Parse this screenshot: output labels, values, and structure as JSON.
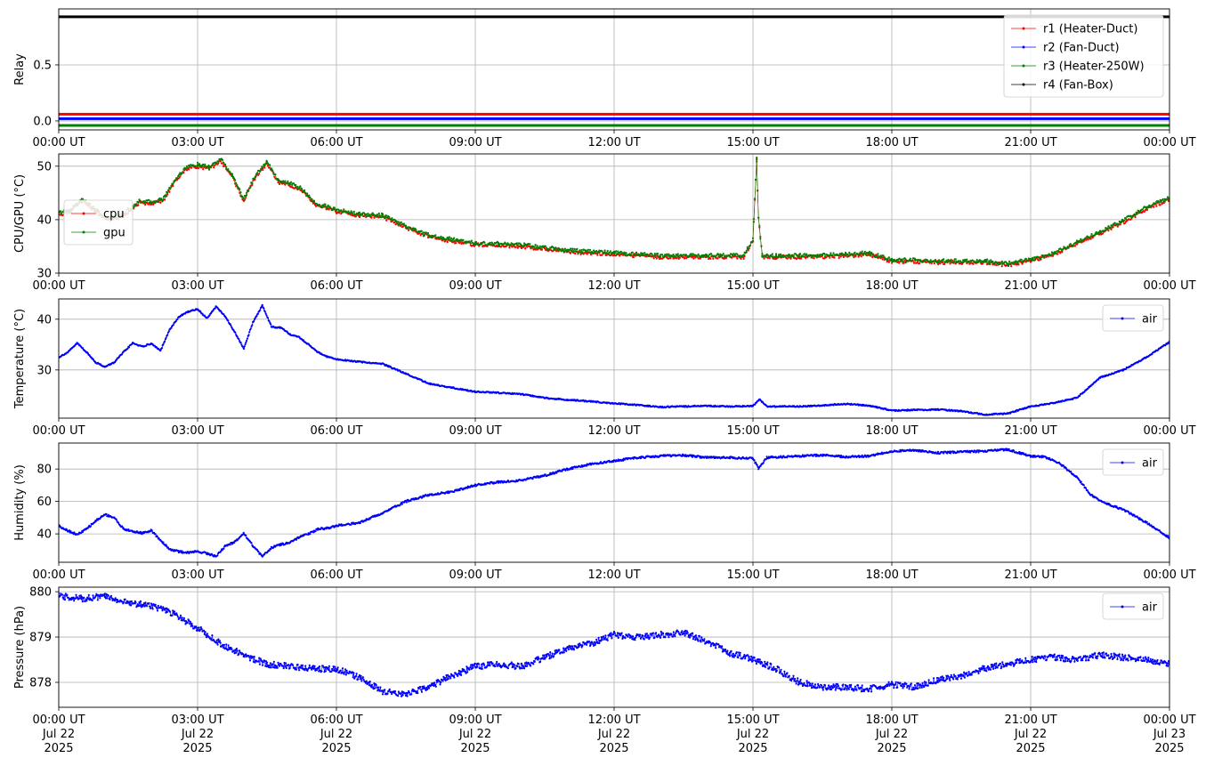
{
  "chart_data": [
    {
      "type": "line",
      "ylabel": "Relay",
      "ylim": [
        -0.08,
        1.0
      ],
      "yticks": [
        0.0,
        0.5
      ],
      "ytick_labels": [
        "0.0",
        "0.5"
      ],
      "xlim": [
        0,
        24
      ],
      "xticks": [
        0,
        3,
        6,
        9,
        12,
        15,
        18,
        21,
        24
      ],
      "xtick_labels": [
        "00:00 UT",
        "03:00 UT",
        "06:00 UT",
        "09:00 UT",
        "12:00 UT",
        "15:00 UT",
        "18:00 UT",
        "21:00 UT",
        "00:00 UT"
      ],
      "grid": true,
      "legend": "top-right",
      "series": [
        {
          "name": "r1 (Heater-Duct)",
          "color": "#ff0000",
          "x": [
            0,
            24
          ],
          "values": [
            0.06,
            0.06
          ]
        },
        {
          "name": "r2 (Fan-Duct)",
          "color": "#0000ff",
          "x": [
            0,
            24
          ],
          "values": [
            0.02,
            0.02
          ]
        },
        {
          "name": "r3 (Heater-250W)",
          "color": "#008000",
          "x": [
            0,
            24
          ],
          "values": [
            -0.04,
            -0.04
          ]
        },
        {
          "name": "r4 (Fan-Box)",
          "color": "#000000",
          "x": [
            0,
            24
          ],
          "values": [
            0.93,
            0.93
          ]
        }
      ]
    },
    {
      "type": "line",
      "ylabel": "CPU/GPU (°C)",
      "ylim": [
        30,
        52.3
      ],
      "yticks": [
        30,
        40,
        50
      ],
      "ytick_labels": [
        "30",
        "40",
        "50"
      ],
      "xlim": [
        0,
        24
      ],
      "xticks": [
        0,
        3,
        6,
        9,
        12,
        15,
        18,
        21,
        24
      ],
      "xtick_labels": [
        "00:00 UT",
        "03:00 UT",
        "06:00 UT",
        "09:00 UT",
        "12:00 UT",
        "15:00 UT",
        "18:00 UT",
        "21:00 UT",
        "00:00 UT"
      ],
      "grid": true,
      "legend": "center-left",
      "series": [
        {
          "name": "cpu",
          "color": "#ff0000",
          "x": [
            0,
            0.25,
            0.5,
            0.75,
            1,
            1.25,
            1.5,
            1.75,
            2,
            2.25,
            2.5,
            2.75,
            3,
            3.25,
            3.5,
            3.75,
            4,
            4.25,
            4.5,
            4.75,
            5,
            5.25,
            5.5,
            6,
            6.5,
            7,
            7.5,
            8,
            8.5,
            9,
            9.5,
            10,
            11,
            12,
            13,
            14,
            14.8,
            15,
            15.08,
            15.12,
            15.2,
            15.5,
            16,
            17,
            17.5,
            18,
            19,
            20,
            20.5,
            21,
            21.5,
            22,
            22.5,
            23,
            23.5,
            24
          ],
          "values": [
            41,
            41.5,
            43.5,
            42,
            40,
            40.2,
            41.5,
            43.2,
            43,
            43.5,
            47,
            49.5,
            50,
            49.5,
            51,
            48,
            43.5,
            48,
            50.5,
            47,
            46.5,
            45.5,
            43,
            41.5,
            40.8,
            40.5,
            38.5,
            36.8,
            36,
            35.3,
            35.2,
            35,
            34,
            33.5,
            33,
            33,
            33,
            36,
            51,
            40,
            33,
            33,
            33,
            33.2,
            33.5,
            32.2,
            32,
            32,
            31.5,
            32.2,
            33.5,
            35.5,
            37.5,
            39.5,
            42,
            43.8
          ]
        },
        {
          "name": "gpu",
          "color": "#008000",
          "x": [
            0,
            0.25,
            0.5,
            0.75,
            1,
            1.25,
            1.5,
            1.75,
            2,
            2.25,
            2.5,
            2.75,
            3,
            3.25,
            3.5,
            3.75,
            4,
            4.25,
            4.5,
            4.75,
            5,
            5.25,
            5.5,
            6,
            6.5,
            7,
            7.5,
            8,
            8.5,
            9,
            9.5,
            10,
            11,
            12,
            13,
            14,
            14.8,
            15,
            15.08,
            15.12,
            15.2,
            15.5,
            16,
            17,
            17.5,
            18,
            19,
            20,
            20.5,
            21,
            21.5,
            22,
            22.5,
            23,
            23.5,
            24
          ],
          "values": [
            41.3,
            41.8,
            43.8,
            42.3,
            40.3,
            40.5,
            41.8,
            43.5,
            43.3,
            43.8,
            47.3,
            49.8,
            50.3,
            49.8,
            51.3,
            48.3,
            43.8,
            48.3,
            50.8,
            47.3,
            46.8,
            45.8,
            43.3,
            41.8,
            41.1,
            40.8,
            38.8,
            37.1,
            36.3,
            35.6,
            35.5,
            35.3,
            34.3,
            33.8,
            33.3,
            33.3,
            33.3,
            36.3,
            51.3,
            40.3,
            33.3,
            33.3,
            33.3,
            33.5,
            33.8,
            32.5,
            32.3,
            32.3,
            31.8,
            32.5,
            33.8,
            35.8,
            37.8,
            39.8,
            42.3,
            44.1
          ]
        }
      ]
    },
    {
      "type": "line",
      "ylabel": "Temperature (°C)",
      "ylim": [
        20.5,
        44
      ],
      "yticks": [
        30,
        40
      ],
      "ytick_labels": [
        "30",
        "40"
      ],
      "xlim": [
        0,
        24
      ],
      "xticks": [
        0,
        3,
        6,
        9,
        12,
        15,
        18,
        21,
        24
      ],
      "xtick_labels": [
        "00:00 UT",
        "03:00 UT",
        "06:00 UT",
        "09:00 UT",
        "12:00 UT",
        "15:00 UT",
        "18:00 UT",
        "21:00 UT",
        "00:00 UT"
      ],
      "grid": true,
      "legend": "top-right",
      "series": [
        {
          "name": "air",
          "color": "#0000ff",
          "x": [
            0,
            0.2,
            0.4,
            0.6,
            0.8,
            1,
            1.2,
            1.4,
            1.6,
            1.8,
            2,
            2.2,
            2.4,
            2.6,
            2.8,
            3,
            3.2,
            3.4,
            3.6,
            3.8,
            4,
            4.2,
            4.4,
            4.6,
            4.8,
            5,
            5.2,
            5.4,
            5.6,
            5.8,
            6,
            6.5,
            7,
            7.5,
            8,
            8.5,
            9,
            9.5,
            10,
            10.5,
            11,
            11.5,
            12,
            12.5,
            13,
            13.5,
            14,
            14.5,
            15,
            15.15,
            15.3,
            16,
            16.5,
            17,
            17.5,
            18,
            18.5,
            19,
            19.5,
            20,
            20.5,
            21,
            21.5,
            22,
            22.5,
            23,
            23.5,
            24
          ],
          "values": [
            32.5,
            33.5,
            35.3,
            33.5,
            31.5,
            30.6,
            31.5,
            33.5,
            35.3,
            34.6,
            35.2,
            33.8,
            38,
            40.5,
            41.5,
            42,
            40.2,
            42.5,
            40.5,
            37.5,
            34.2,
            39.5,
            42.7,
            38.5,
            38.3,
            37,
            36.4,
            35,
            33.5,
            32.6,
            32.1,
            31.6,
            31.2,
            29.3,
            27.3,
            26.5,
            25.7,
            25.5,
            25.2,
            24.5,
            24.1,
            23.8,
            23.4,
            23.1,
            22.7,
            22.8,
            22.9,
            22.8,
            22.9,
            24.2,
            22.8,
            22.8,
            23.0,
            23.3,
            23.0,
            22.0,
            22.1,
            22.2,
            21.9,
            21.2,
            21.4,
            22.8,
            23.5,
            24.5,
            28.5,
            30,
            32.5,
            35.5
          ]
        }
      ]
    },
    {
      "type": "line",
      "ylabel": "Humidity (%)",
      "ylim": [
        22.5,
        96
      ],
      "yticks": [
        40,
        60,
        80
      ],
      "ytick_labels": [
        "40",
        "60",
        "80"
      ],
      "xlim": [
        0,
        24
      ],
      "xticks": [
        0,
        3,
        6,
        9,
        12,
        15,
        18,
        21,
        24
      ],
      "xtick_labels": [
        "00:00 UT",
        "03:00 UT",
        "06:00 UT",
        "09:00 UT",
        "12:00 UT",
        "15:00 UT",
        "18:00 UT",
        "21:00 UT",
        "00:00 UT"
      ],
      "grid": true,
      "legend": "top-right",
      "series": [
        {
          "name": "air",
          "color": "#0000ff",
          "x": [
            0,
            0.2,
            0.4,
            0.6,
            0.8,
            1,
            1.2,
            1.4,
            1.6,
            1.8,
            2,
            2.2,
            2.4,
            2.6,
            2.8,
            3,
            3.2,
            3.4,
            3.6,
            3.8,
            4,
            4.2,
            4.4,
            4.6,
            4.8,
            5,
            5.2,
            5.4,
            5.6,
            5.8,
            6,
            6.5,
            7,
            7.5,
            8,
            8.5,
            9,
            9.5,
            10,
            10.5,
            11,
            11.5,
            12,
            12.5,
            13,
            13.5,
            14,
            14.5,
            15,
            15.12,
            15.3,
            16,
            16.5,
            17,
            17.5,
            18,
            18.5,
            19,
            19.5,
            20,
            20.5,
            21,
            21.3,
            21.6,
            22,
            22.3,
            22.6,
            23,
            23.5,
            24
          ],
          "values": [
            45,
            42,
            39.5,
            43,
            48,
            52,
            50,
            43,
            41.5,
            40.5,
            42,
            36,
            30.5,
            29,
            28.5,
            29.2,
            28,
            26.2,
            32.5,
            35,
            40.5,
            32.5,
            26,
            31.5,
            33.5,
            34.5,
            38,
            40,
            43,
            43.5,
            45,
            47,
            53,
            60,
            64,
            66,
            70,
            72,
            73,
            76,
            80,
            83,
            85,
            87,
            88,
            88.5,
            87,
            87,
            86.5,
            80.5,
            87,
            88,
            88.5,
            87.5,
            88,
            91,
            91.5,
            90,
            90.5,
            91,
            92,
            88,
            87.5,
            84,
            75,
            64,
            59,
            55,
            47,
            37.5
          ]
        }
      ]
    },
    {
      "type": "line",
      "ylabel": "Pressure (hPa)",
      "ylim": [
        877.45,
        880.1
      ],
      "yticks": [
        878,
        879,
        880
      ],
      "ytick_labels": [
        "878",
        "879",
        "880"
      ],
      "xlim": [
        0,
        24
      ],
      "xticks": [
        0,
        3,
        6,
        9,
        12,
        15,
        18,
        21,
        24
      ],
      "xtick_labels": [
        "00:00 UT\nJul 22\n2025",
        "03:00 UT\nJul 22\n2025",
        "06:00 UT\nJul 22\n2025",
        "09:00 UT\nJul 22\n2025",
        "12:00 UT\nJul 22\n2025",
        "15:00 UT\nJul 22\n2025",
        "18:00 UT\nJul 22\n2025",
        "21:00 UT\nJul 22\n2025",
        "00:00 UT\nJul 23\n2025"
      ],
      "grid": true,
      "legend": "top-right",
      "series": [
        {
          "name": "air",
          "color": "#0000ff",
          "x": [
            0,
            0.5,
            1,
            1.5,
            2,
            2.5,
            3,
            3.5,
            4,
            4.5,
            5,
            5.5,
            6,
            6.5,
            7,
            7.5,
            8,
            8.5,
            9,
            9.5,
            10,
            10.5,
            11,
            11.5,
            12,
            12.5,
            13,
            13.5,
            14,
            14.5,
            15,
            15.5,
            16,
            16.5,
            17,
            17.5,
            18,
            18.5,
            19,
            19.5,
            20,
            20.5,
            21,
            21.5,
            22,
            22.5,
            23,
            23.5,
            24
          ],
          "values": [
            879.9,
            879.85,
            879.9,
            879.75,
            879.7,
            879.5,
            879.2,
            878.85,
            878.6,
            878.4,
            878.35,
            878.3,
            878.3,
            878.1,
            877.8,
            877.75,
            877.9,
            878.15,
            878.35,
            878.4,
            878.35,
            878.55,
            878.75,
            878.85,
            879.05,
            879.0,
            879.05,
            879.1,
            878.9,
            878.65,
            878.5,
            878.3,
            878.0,
            877.9,
            877.9,
            877.85,
            877.95,
            877.9,
            878.05,
            878.15,
            878.3,
            878.4,
            878.5,
            878.55,
            878.5,
            878.6,
            878.55,
            878.5,
            878.4
          ]
        }
      ]
    }
  ]
}
